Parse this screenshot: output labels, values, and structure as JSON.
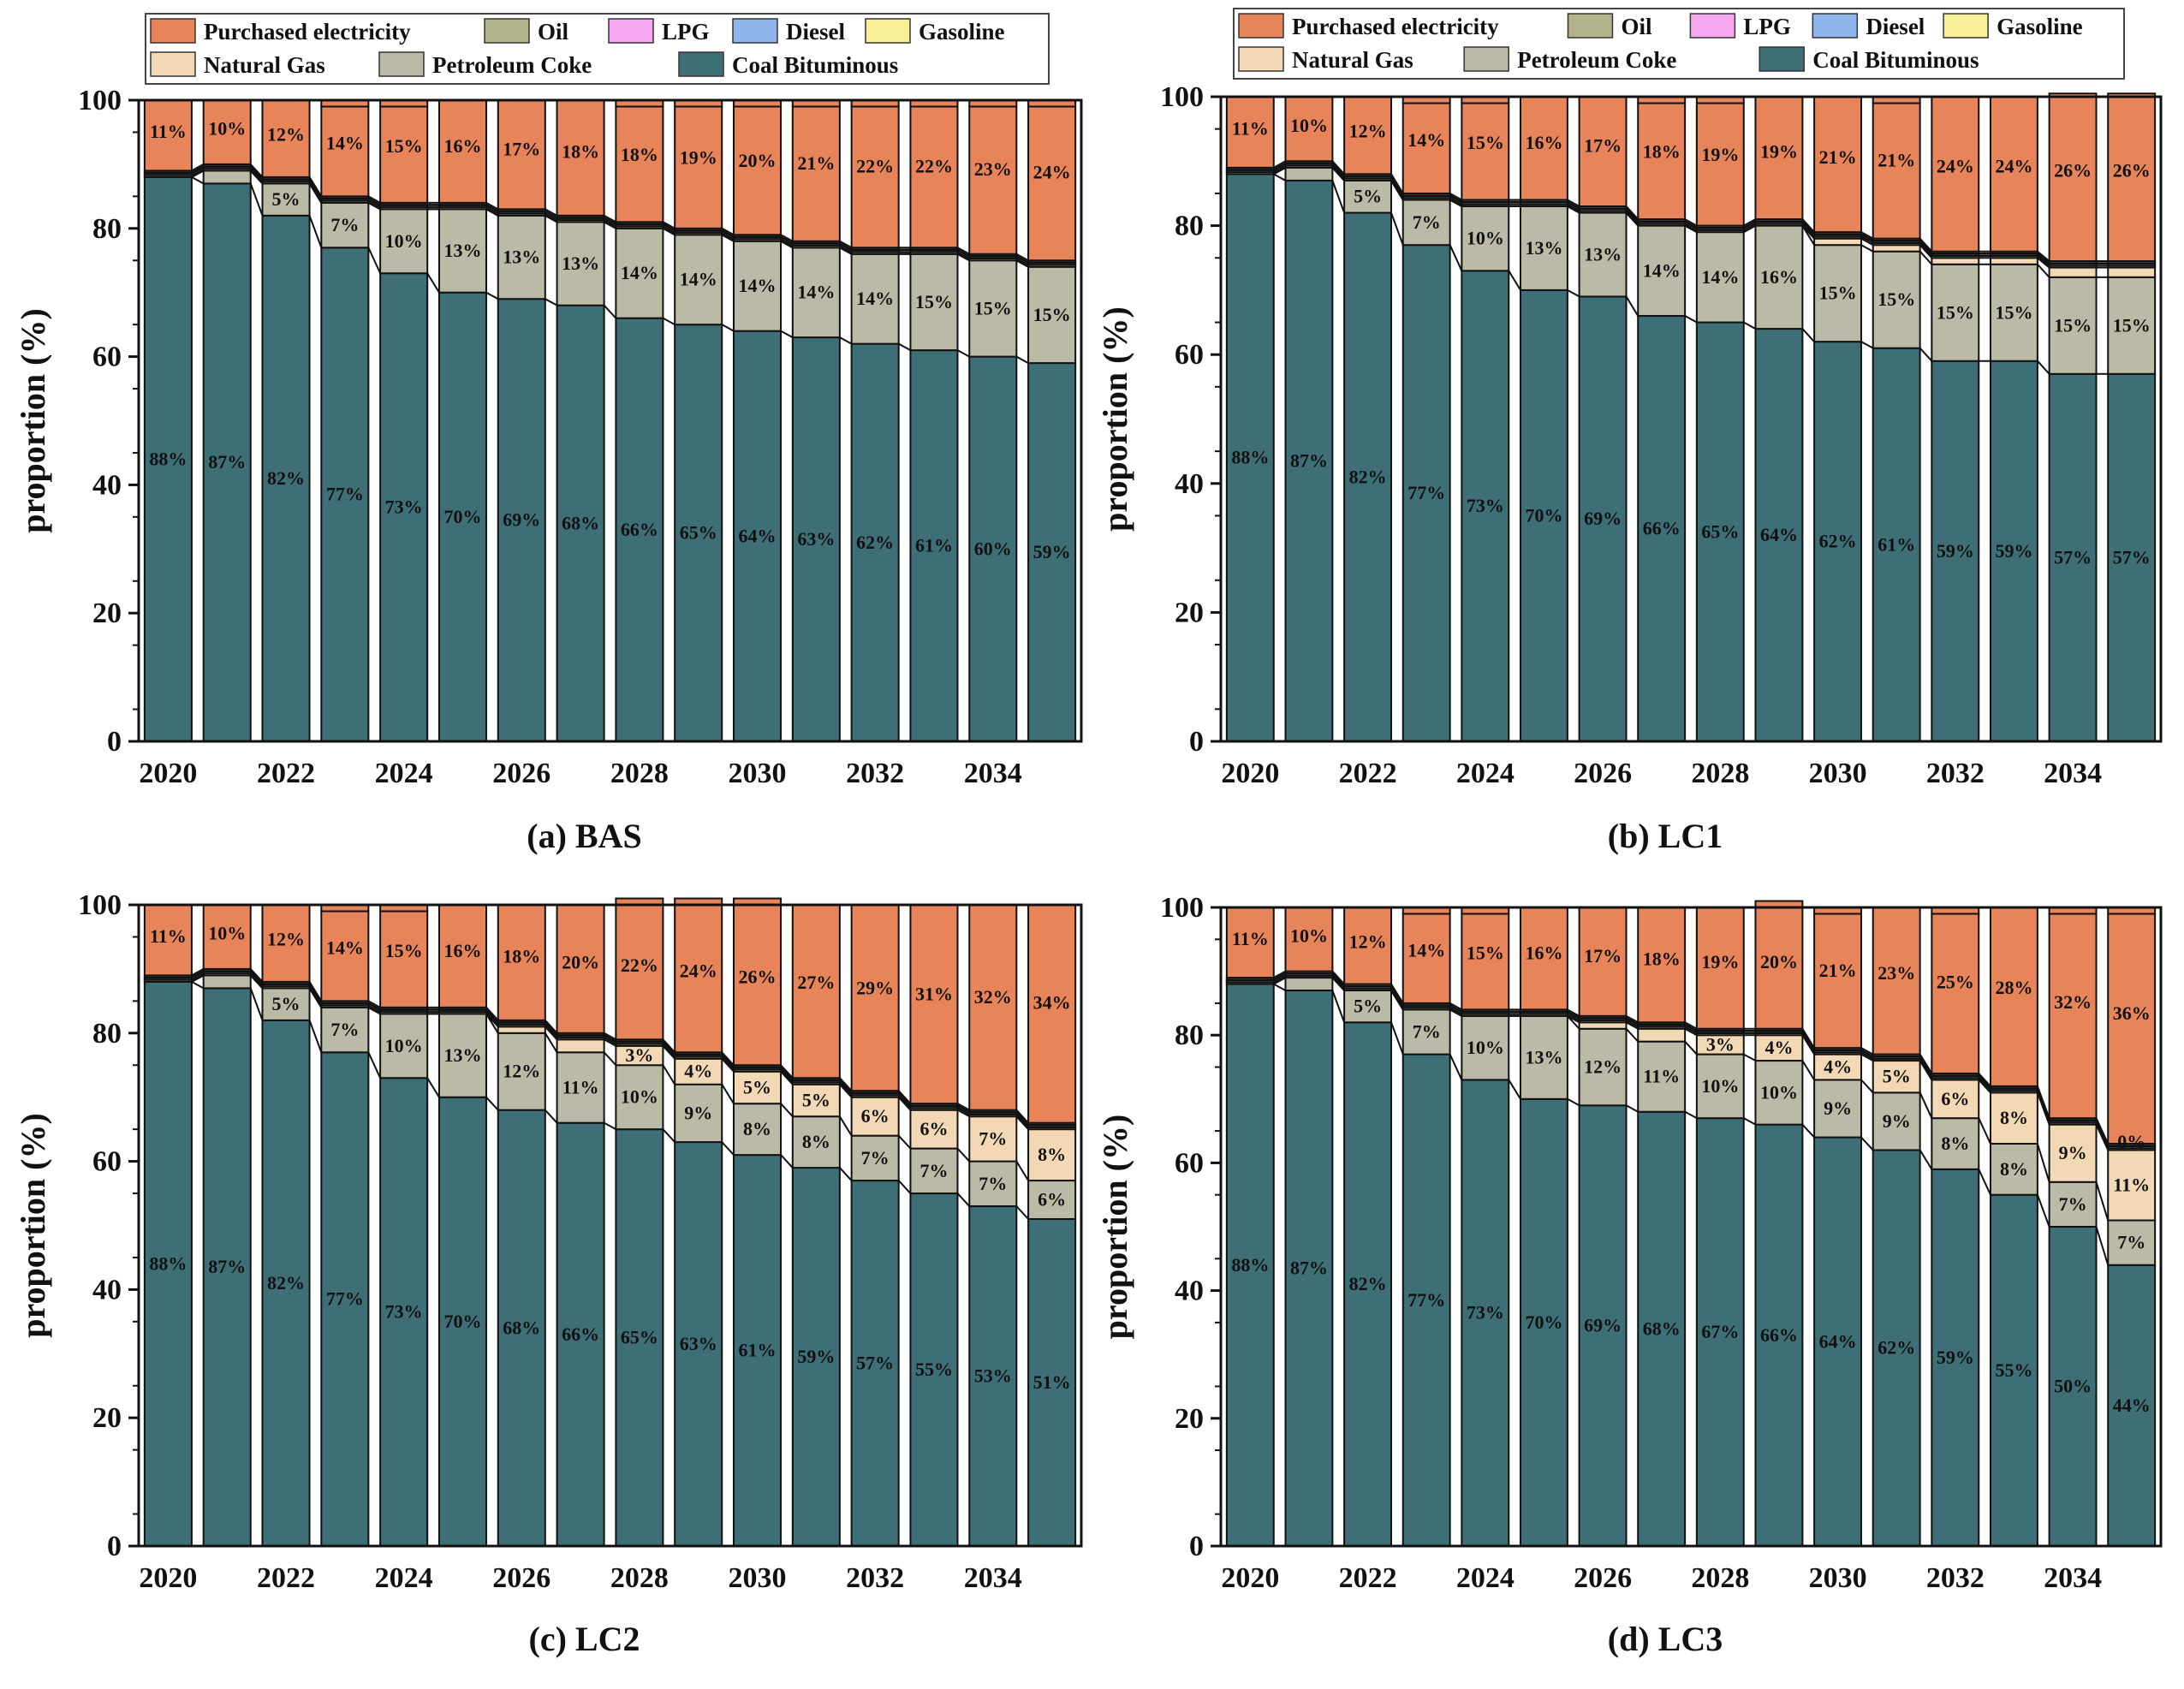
{
  "colors": {
    "Purchased electricity": "#E8845A",
    "Oil": "#B4B48C",
    "LPG": "#F8A8F0",
    "Diesel": "#90B4EC",
    "Gasoline": "#F8F098",
    "Natural Gas": "#F2D8B4",
    "Petroleum Coke": "#BABAA6",
    "Coal Bituminous": "#3E6E76"
  },
  "legend": {
    "row1": [
      "Purchased electricity",
      "Oil",
      "LPG",
      "Diesel",
      "Gasoline"
    ],
    "row2": [
      "Natural Gas",
      "Petroleum Coke",
      "Coal Bituminous"
    ]
  },
  "chart_data": [
    {
      "type": "bar",
      "stacked": true,
      "title": "(a) BAS",
      "xlabel": "",
      "ylabel": "proportion (%)",
      "ylim": [
        0,
        100
      ],
      "yticks": [
        0,
        20,
        40,
        60,
        80,
        100
      ],
      "categories": [
        "2020",
        "2021",
        "2022",
        "2023",
        "2024",
        "2025",
        "2026",
        "2027",
        "2028",
        "2029",
        "2030",
        "2031",
        "2032",
        "2033",
        "2034",
        "2035"
      ],
      "xtick_labels": [
        "2020",
        "2022",
        "2024",
        "2026",
        "2028",
        "2030",
        "2032",
        "2034"
      ],
      "series": [
        {
          "name": "Coal Bituminous",
          "values": [
            88,
            87,
            82,
            77,
            73,
            70,
            69,
            68,
            66,
            65,
            64,
            63,
            62,
            61,
            60,
            59
          ]
        },
        {
          "name": "Petroleum Coke",
          "values": [
            0,
            2,
            5,
            7,
            10,
            13,
            13,
            13,
            14,
            14,
            14,
            14,
            14,
            15,
            15,
            15
          ]
        },
        {
          "name": "Natural Gas",
          "values": [
            0,
            0,
            0,
            0,
            0,
            0,
            0,
            0,
            0,
            0,
            0,
            0,
            0,
            0,
            0,
            0
          ]
        },
        {
          "name": "Gasoline",
          "values": [
            0.3,
            0.3,
            0.3,
            0.3,
            0.3,
            0.3,
            0.3,
            0.3,
            0.3,
            0.3,
            0.3,
            0.3,
            0.3,
            0.3,
            0.3,
            0.3
          ]
        },
        {
          "name": "Diesel",
          "values": [
            0.3,
            0.3,
            0.3,
            0.3,
            0.3,
            0.3,
            0.3,
            0.3,
            0.3,
            0.3,
            0.3,
            0.3,
            0.3,
            0.3,
            0.3,
            0.3
          ]
        },
        {
          "name": "LPG",
          "values": [
            0.1,
            0.1,
            0.1,
            0.1,
            0.1,
            0.1,
            0.1,
            0.1,
            0.1,
            0.1,
            0.1,
            0.1,
            0.1,
            0.1,
            0.1,
            0.1
          ]
        },
        {
          "name": "Oil",
          "values": [
            0.3,
            0.3,
            0.3,
            0.3,
            0.3,
            0.3,
            0.3,
            0.3,
            0.3,
            0.3,
            0.3,
            0.3,
            0.3,
            0.3,
            0.3,
            0.3
          ]
        },
        {
          "name": "Purchased electricity",
          "values": [
            11,
            10,
            12,
            14,
            15,
            16,
            17,
            18,
            18,
            19,
            20,
            21,
            22,
            22,
            23,
            24
          ]
        }
      ],
      "labels": {
        "Coal Bituminous": [
          "88%",
          "87%",
          "82%",
          "77%",
          "73%",
          "70%",
          "69%",
          "68%",
          "66%",
          "65%",
          "64%",
          "63%",
          "62%",
          "61%",
          "60%",
          "59%"
        ],
        "Petroleum Coke": [
          "",
          "",
          "5%",
          "7%",
          "10%",
          "13%",
          "13%",
          "13%",
          "14%",
          "14%",
          "14%",
          "14%",
          "14%",
          "15%",
          "15%",
          "15%"
        ],
        "Natural Gas": [
          "",
          "",
          "",
          "",
          "",
          "",
          "",
          "",
          "",
          "",
          "",
          "",
          "",
          "",
          "",
          ""
        ],
        "Purchased electricity": [
          "11%",
          "10%",
          "12%",
          "14%",
          "15%",
          "16%",
          "17%",
          "18%",
          "18%",
          "19%",
          "20%",
          "21%",
          "22%",
          "22%",
          "23%",
          "24%"
        ]
      }
    },
    {
      "type": "bar",
      "stacked": true,
      "title": "(b) LC1",
      "xlabel": "",
      "ylabel": "proportion (%)",
      "ylim": [
        0,
        100
      ],
      "yticks": [
        0,
        20,
        40,
        60,
        80,
        100
      ],
      "categories": [
        "2020",
        "2021",
        "2022",
        "2023",
        "2024",
        "2025",
        "2026",
        "2027",
        "2028",
        "2029",
        "2030",
        "2031",
        "2032",
        "2033",
        "2034",
        "2035"
      ],
      "xtick_labels": [
        "2020",
        "2022",
        "2024",
        "2026",
        "2028",
        "2030",
        "2032",
        "2034"
      ],
      "series": [
        {
          "name": "Coal Bituminous",
          "values": [
            88,
            87,
            82,
            77,
            73,
            70,
            69,
            66,
            65,
            64,
            62,
            61,
            59,
            59,
            57,
            57
          ]
        },
        {
          "name": "Petroleum Coke",
          "values": [
            0,
            2,
            5,
            7,
            10,
            13,
            13,
            14,
            14,
            16,
            15,
            15,
            15,
            15,
            15,
            15
          ]
        },
        {
          "name": "Natural Gas",
          "values": [
            0,
            0,
            0,
            0,
            0,
            0,
            0,
            0,
            0,
            0,
            1,
            1,
            1,
            1,
            1.5,
            1.5
          ]
        },
        {
          "name": "Gasoline",
          "values": [
            0.3,
            0.3,
            0.3,
            0.3,
            0.3,
            0.3,
            0.3,
            0.3,
            0.3,
            0.3,
            0.3,
            0.3,
            0.3,
            0.3,
            0.3,
            0.3
          ]
        },
        {
          "name": "Diesel",
          "values": [
            0.3,
            0.3,
            0.3,
            0.3,
            0.3,
            0.3,
            0.3,
            0.3,
            0.3,
            0.3,
            0.3,
            0.3,
            0.3,
            0.3,
            0.3,
            0.3
          ]
        },
        {
          "name": "LPG",
          "values": [
            0.1,
            0.1,
            0.1,
            0.1,
            0.1,
            0.1,
            0.1,
            0.1,
            0.1,
            0.1,
            0.1,
            0.1,
            0.1,
            0.1,
            0.1,
            0.1
          ]
        },
        {
          "name": "Oil",
          "values": [
            0.3,
            0.3,
            0.3,
            0.3,
            0.3,
            0.3,
            0.3,
            0.3,
            0.3,
            0.3,
            0.3,
            0.3,
            0.3,
            0.3,
            0.3,
            0.3
          ]
        },
        {
          "name": "Purchased electricity",
          "values": [
            11,
            10,
            12,
            14,
            15,
            16,
            17,
            18,
            19,
            19,
            21,
            21,
            24,
            24,
            26,
            26
          ]
        }
      ],
      "labels": {
        "Coal Bituminous": [
          "88%",
          "87%",
          "82%",
          "77%",
          "73%",
          "70%",
          "69%",
          "66%",
          "65%",
          "64%",
          "62%",
          "61%",
          "59%",
          "59%",
          "57%",
          "57%"
        ],
        "Petroleum Coke": [
          "",
          "",
          "5%",
          "7%",
          "10%",
          "13%",
          "13%",
          "14%",
          "14%",
          "16%",
          "15%",
          "15%",
          "15%",
          "15%",
          "15%",
          "15%"
        ],
        "Natural Gas": [
          "",
          "",
          "",
          "",
          "",
          "",
          "",
          "",
          "",
          "",
          "",
          "",
          "",
          "",
          "",
          ""
        ],
        "Purchased electricity": [
          "11%",
          "10%",
          "12%",
          "14%",
          "15%",
          "16%",
          "17%",
          "18%",
          "19%",
          "19%",
          "21%",
          "21%",
          "24%",
          "24%",
          "26%",
          "26%"
        ]
      }
    },
    {
      "type": "bar",
      "stacked": true,
      "title": "(c) LC2",
      "xlabel": "",
      "ylabel": "proportion (%)",
      "ylim": [
        0,
        100
      ],
      "yticks": [
        0,
        20,
        40,
        60,
        80,
        100
      ],
      "categories": [
        "2020",
        "2021",
        "2022",
        "2023",
        "2024",
        "2025",
        "2026",
        "2027",
        "2028",
        "2029",
        "2030",
        "2031",
        "2032",
        "2033",
        "2034",
        "2035"
      ],
      "xtick_labels": [
        "2020",
        "2022",
        "2024",
        "2026",
        "2028",
        "2030",
        "2032",
        "2034"
      ],
      "series": [
        {
          "name": "Coal Bituminous",
          "values": [
            88,
            87,
            82,
            77,
            73,
            70,
            68,
            66,
            65,
            63,
            61,
            59,
            57,
            55,
            53,
            51
          ]
        },
        {
          "name": "Petroleum Coke",
          "values": [
            0,
            2,
            5,
            7,
            10,
            13,
            12,
            11,
            10,
            9,
            8,
            8,
            7,
            7,
            7,
            6
          ]
        },
        {
          "name": "Natural Gas",
          "values": [
            0,
            0,
            0,
            0,
            0,
            0,
            1,
            2,
            3,
            4,
            5,
            5,
            6,
            6,
            7,
            8
          ]
        },
        {
          "name": "Gasoline",
          "values": [
            0.3,
            0.3,
            0.3,
            0.3,
            0.3,
            0.3,
            0.3,
            0.3,
            0.3,
            0.3,
            0.3,
            0.3,
            0.3,
            0.3,
            0.3,
            0.3
          ]
        },
        {
          "name": "Diesel",
          "values": [
            0.3,
            0.3,
            0.3,
            0.3,
            0.3,
            0.3,
            0.3,
            0.3,
            0.3,
            0.3,
            0.3,
            0.3,
            0.3,
            0.3,
            0.3,
            0.3
          ]
        },
        {
          "name": "LPG",
          "values": [
            0.1,
            0.1,
            0.1,
            0.1,
            0.1,
            0.1,
            0.1,
            0.1,
            0.1,
            0.1,
            0.1,
            0.1,
            0.1,
            0.1,
            0.1,
            0.1
          ]
        },
        {
          "name": "Oil",
          "values": [
            0.3,
            0.3,
            0.3,
            0.3,
            0.3,
            0.3,
            0.3,
            0.3,
            0.3,
            0.3,
            0.3,
            0.3,
            0.3,
            0.3,
            0.3,
            0.3
          ]
        },
        {
          "name": "Purchased electricity",
          "values": [
            11,
            10,
            12,
            14,
            15,
            16,
            18,
            20,
            22,
            24,
            26,
            27,
            29,
            31,
            32,
            34
          ]
        }
      ],
      "labels": {
        "Coal Bituminous": [
          "88%",
          "87%",
          "82%",
          "77%",
          "73%",
          "70%",
          "68%",
          "66%",
          "65%",
          "63%",
          "61%",
          "59%",
          "57%",
          "55%",
          "53%",
          "51%"
        ],
        "Petroleum Coke": [
          "",
          "",
          "5%",
          "7%",
          "10%",
          "13%",
          "12%",
          "11%",
          "10%",
          "9%",
          "8%",
          "8%",
          "7%",
          "7%",
          "7%",
          "6%"
        ],
        "Natural Gas": [
          "",
          "",
          "",
          "",
          "",
          "",
          "",
          "",
          "3%",
          "4%",
          "5%",
          "5%",
          "6%",
          "6%",
          "7%",
          "8%"
        ],
        "Purchased electricity": [
          "11%",
          "10%",
          "12%",
          "14%",
          "15%",
          "16%",
          "18%",
          "20%",
          "22%",
          "24%",
          "26%",
          "27%",
          "29%",
          "31%",
          "32%",
          "34%"
        ]
      }
    },
    {
      "type": "bar",
      "stacked": true,
      "title": "(d) LC3",
      "xlabel": "",
      "ylabel": "proportion (%)",
      "ylim": [
        0,
        100
      ],
      "yticks": [
        0,
        20,
        40,
        60,
        80,
        100
      ],
      "categories": [
        "2020",
        "2021",
        "2022",
        "2023",
        "2024",
        "2025",
        "2026",
        "2027",
        "2028",
        "2029",
        "2030",
        "2031",
        "2032",
        "2033",
        "2034",
        "2035"
      ],
      "xtick_labels": [
        "2020",
        "2022",
        "2024",
        "2026",
        "2028",
        "2030",
        "2032",
        "2034"
      ],
      "series": [
        {
          "name": "Coal Bituminous",
          "values": [
            88,
            87,
            82,
            77,
            73,
            70,
            69,
            68,
            67,
            66,
            64,
            62,
            59,
            55,
            50,
            44
          ]
        },
        {
          "name": "Petroleum Coke",
          "values": [
            0,
            2,
            5,
            7,
            10,
            13,
            12,
            11,
            10,
            10,
            9,
            9,
            8,
            8,
            7,
            7
          ]
        },
        {
          "name": "Natural Gas",
          "values": [
            0,
            0,
            0,
            0,
            0,
            0,
            1,
            2,
            3,
            4,
            4,
            5,
            6,
            8,
            9,
            11
          ]
        },
        {
          "name": "Gasoline",
          "values": [
            0.3,
            0.3,
            0.3,
            0.3,
            0.3,
            0.3,
            0.3,
            0.3,
            0.3,
            0.3,
            0.3,
            0.3,
            0.3,
            0.3,
            0.3,
            0.3
          ]
        },
        {
          "name": "Diesel",
          "values": [
            0.3,
            0.3,
            0.3,
            0.3,
            0.3,
            0.3,
            0.3,
            0.3,
            0.3,
            0.3,
            0.3,
            0.3,
            0.3,
            0.3,
            0.3,
            0.3
          ]
        },
        {
          "name": "LPG",
          "values": [
            0.1,
            0.1,
            0.1,
            0.1,
            0.1,
            0.1,
            0.1,
            0.1,
            0.1,
            0.1,
            0.1,
            0.1,
            0.1,
            0.1,
            0.1,
            0.1
          ]
        },
        {
          "name": "Oil",
          "values": [
            0.3,
            0.3,
            0.3,
            0.3,
            0.3,
            0.3,
            0.3,
            0.3,
            0.3,
            0.3,
            0.3,
            0.3,
            0.3,
            0.3,
            0.3,
            0.3
          ]
        },
        {
          "name": "Purchased electricity",
          "values": [
            11,
            10,
            12,
            14,
            15,
            16,
            17,
            18,
            19,
            20,
            21,
            23,
            25,
            28,
            32,
            36
          ]
        }
      ],
      "labels": {
        "Coal Bituminous": [
          "88%",
          "87%",
          "82%",
          "77%",
          "73%",
          "70%",
          "69%",
          "68%",
          "67%",
          "66%",
          "64%",
          "62%",
          "59%",
          "55%",
          "50%",
          "44%"
        ],
        "Petroleum Coke": [
          "",
          "",
          "5%",
          "7%",
          "10%",
          "13%",
          "12%",
          "11%",
          "10%",
          "10%",
          "9%",
          "9%",
          "8%",
          "8%",
          "7%",
          "7%"
        ],
        "Natural Gas": [
          "",
          "",
          "",
          "",
          "",
          "",
          "",
          "",
          "3%",
          "4%",
          "4%",
          "5%",
          "6%",
          "8%",
          "9%",
          "11%"
        ],
        "Purchased electricity": [
          "11%",
          "10%",
          "12%",
          "14%",
          "15%",
          "16%",
          "17%",
          "18%",
          "19%",
          "20%",
          "21%",
          "23%",
          "25%",
          "28%",
          "32%",
          "36%"
        ],
        "Oil": [
          "",
          "",
          "",
          "",
          "",
          "",
          "",
          "",
          "",
          "",
          "",
          "",
          "",
          "",
          "",
          "0%"
        ]
      }
    }
  ]
}
